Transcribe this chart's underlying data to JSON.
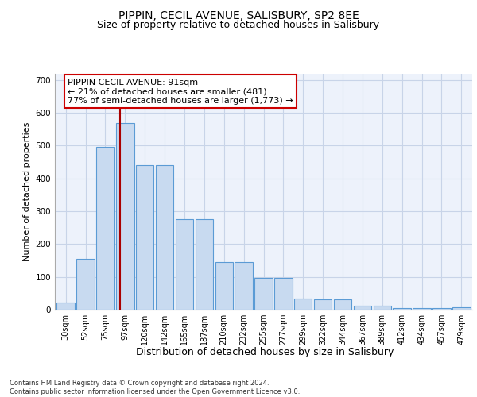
{
  "title": "PIPPIN, CECIL AVENUE, SALISBURY, SP2 8EE",
  "subtitle": "Size of property relative to detached houses in Salisbury",
  "xlabel": "Distribution of detached houses by size in Salisbury",
  "ylabel": "Number of detached properties",
  "categories": [
    "30sqm",
    "52sqm",
    "75sqm",
    "97sqm",
    "120sqm",
    "142sqm",
    "165sqm",
    "187sqm",
    "210sqm",
    "232sqm",
    "255sqm",
    "277sqm",
    "299sqm",
    "322sqm",
    "344sqm",
    "367sqm",
    "389sqm",
    "412sqm",
    "434sqm",
    "457sqm",
    "479sqm"
  ],
  "values": [
    22,
    155,
    497,
    568,
    440,
    440,
    277,
    275,
    145,
    145,
    98,
    98,
    35,
    32,
    32,
    13,
    12,
    5,
    5,
    5,
    8
  ],
  "bar_color": "#c8daf0",
  "bar_edge_color": "#5b9bd5",
  "grid_color": "#c8d4e8",
  "background_color": "#edf2fb",
  "vline_color": "#aa0000",
  "annotation_line1": "PIPPIN CECIL AVENUE: 91sqm",
  "annotation_line2": "← 21% of detached houses are smaller (481)",
  "annotation_line3": "77% of semi-detached houses are larger (1,773) →",
  "annotation_box_facecolor": "#ffffff",
  "annotation_box_edgecolor": "#cc0000",
  "footer_text": "Contains HM Land Registry data © Crown copyright and database right 2024.\nContains public sector information licensed under the Open Government Licence v3.0.",
  "ylim": [
    0,
    720
  ],
  "yticks": [
    0,
    100,
    200,
    300,
    400,
    500,
    600,
    700
  ],
  "title_fontsize": 10,
  "subtitle_fontsize": 9,
  "tick_fontsize": 7,
  "ylabel_fontsize": 8,
  "xlabel_fontsize": 9,
  "footer_fontsize": 6,
  "ann_fontsize": 8
}
